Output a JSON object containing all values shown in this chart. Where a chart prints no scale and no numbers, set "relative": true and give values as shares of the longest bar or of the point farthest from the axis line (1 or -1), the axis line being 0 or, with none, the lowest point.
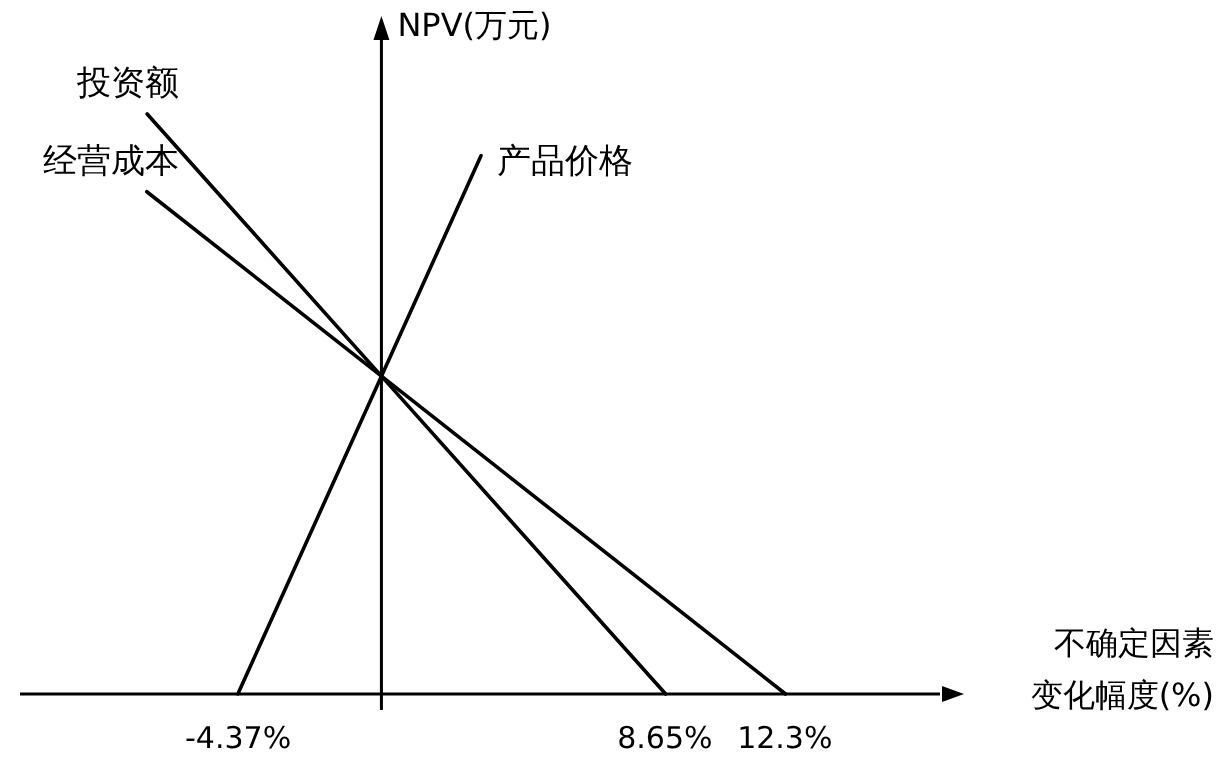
{
  "chart_data": {
    "type": "line",
    "relative": true,
    "xlabel": "不确定因素变化幅度(%)",
    "ref_lines": [
      {
        "axis": "x",
        "value": 0
      }
    ],
    "ylabel": "NPV(万元)",
    "xlim": [
      -11,
      17
    ],
    "xticks": [
      {
        "value": -4.37,
        "label": "-4.37%"
      },
      {
        "value": 8.65,
        "label": "8.65%"
      },
      {
        "value": 12.3,
        "label": "12.3%"
      }
    ],
    "line_style": "solid",
    "series": [
      {
        "name": "投资额",
        "color": "#000000",
        "x": [
          -7.13,
          0,
          8.65
        ],
        "values": [
          1,
          0.548,
          0
        ]
      },
      {
        "name": "经营成本",
        "color": "#000000",
        "x": [
          -7.14,
          0,
          12.3
        ],
        "values": [
          0.866,
          0.548,
          0
        ]
      },
      {
        "name": "产品价格",
        "color": "#000000",
        "x": [
          -4.37,
          0,
          3.03
        ],
        "values": [
          0,
          0.548,
          0.928
        ]
      }
    ]
  }
}
